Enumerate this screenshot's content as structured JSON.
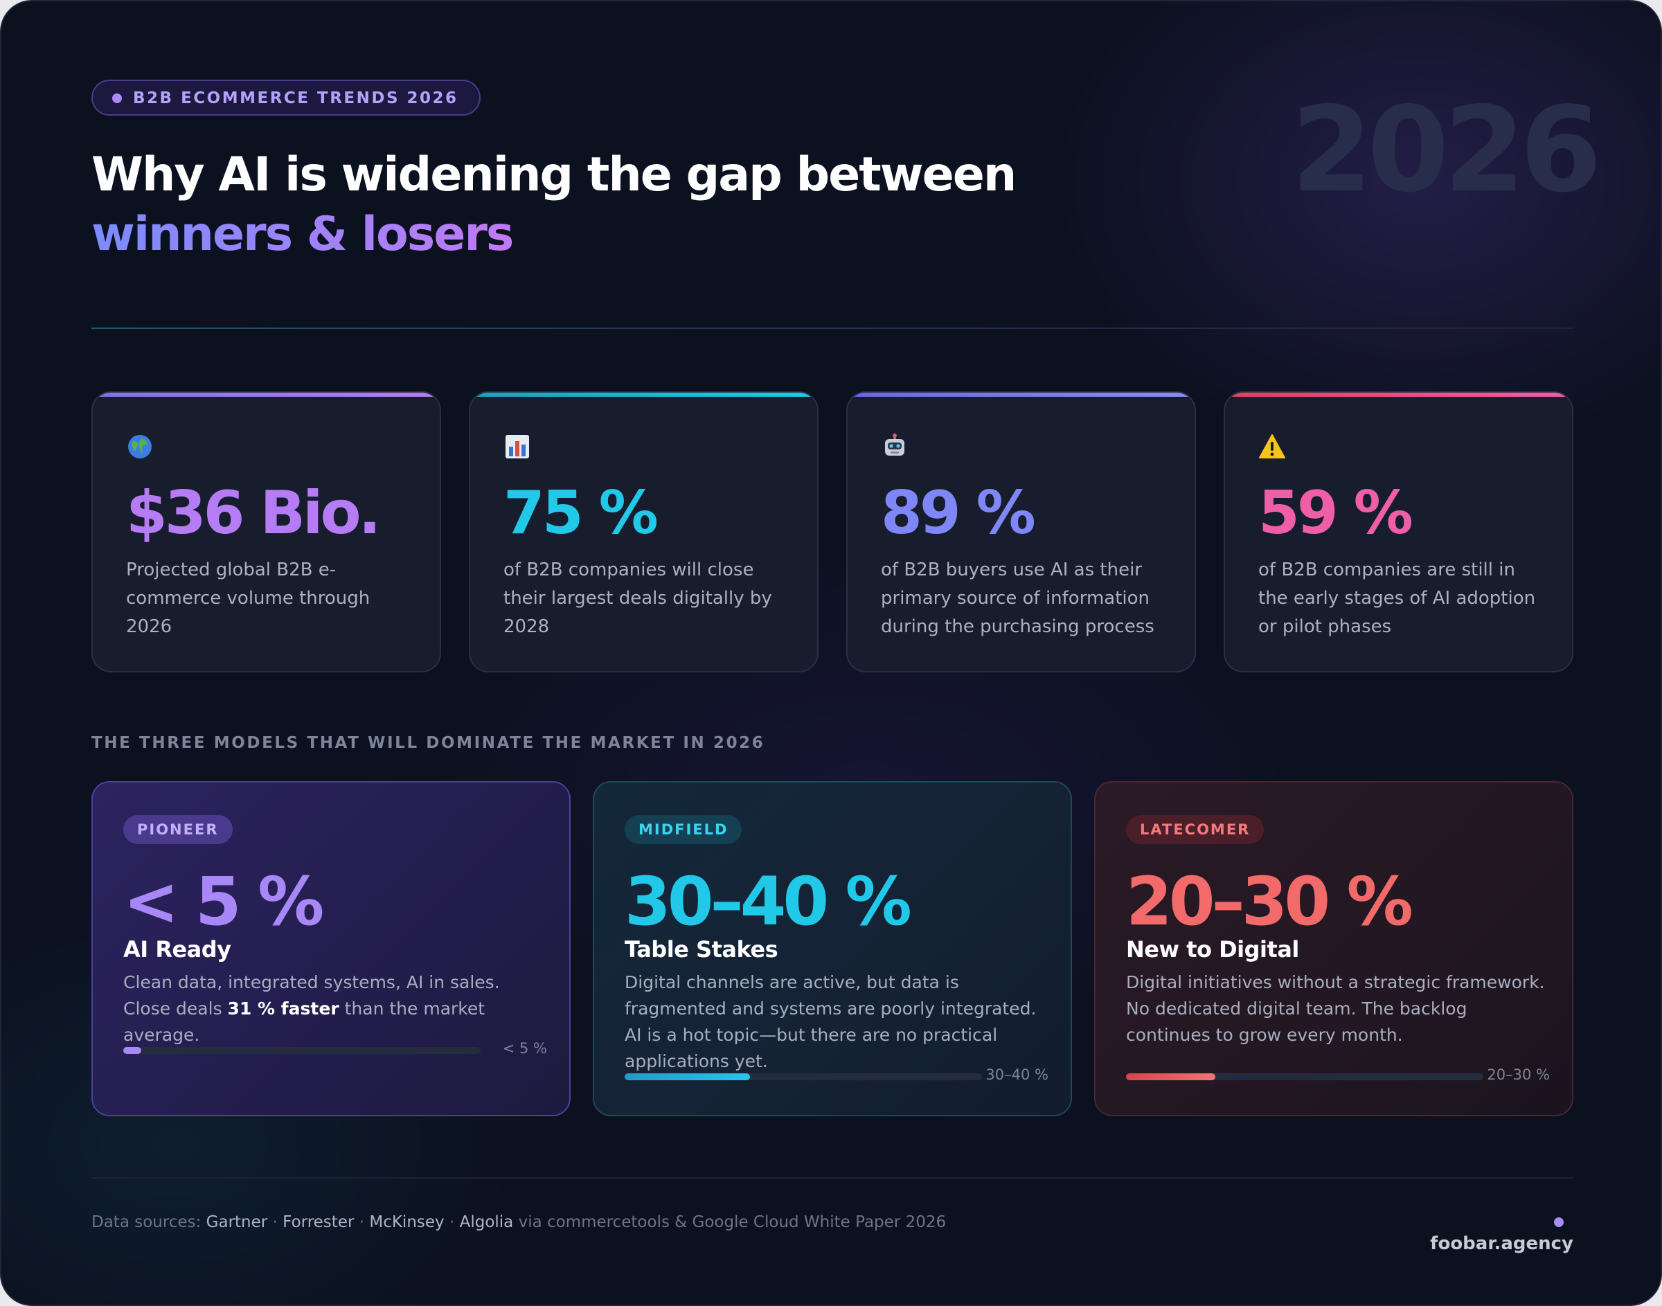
{
  "header": {
    "badge": "B2B ECOMMERCE TRENDS 2026",
    "title_line1": "Why AI is widening the gap between",
    "title_line2": "winners & losers",
    "year_watermark": "2026"
  },
  "stats": [
    {
      "icon": "globe-icon",
      "value": "$36 Bio.",
      "desc": "Projected global B2B e-commerce volume through 2026",
      "accent": "#b57cf5"
    },
    {
      "icon": "bar-chart-icon",
      "value": "75 %",
      "desc": "of B2B companies will close their largest deals digitally by 2028",
      "accent": "#22c8e8"
    },
    {
      "icon": "robot-icon",
      "value": "89 %",
      "desc": "of B2B buyers use AI as their primary source of information during the purchasing process",
      "accent": "#7f86f6"
    },
    {
      "icon": "warning-icon",
      "value": "59 %",
      "desc": "of B2B companies are still in the early stages of AI adoption or pilot phases",
      "accent": "#ee5fa8"
    }
  ],
  "section_label": "THE THREE MODELS THAT WILL DOMINATE THE MARKET IN 2026",
  "models": [
    {
      "tag": "PIONEER",
      "value": "< 5 %",
      "name": "AI Ready",
      "text_before": "Clean data, integrated systems, AI in sales. Close deals ",
      "text_bold": "31 % faster",
      "text_after": " than the market average.",
      "progress": 0.05,
      "progress_label": "< 5 %",
      "accent": "#a887f6"
    },
    {
      "tag": "MIDFIELD",
      "value": "30–40 %",
      "name": "Table Stakes",
      "text": "Digital channels are active, but data is fragmented and systems are poorly integrated. AI is a hot topic—but there are no practical applications yet.",
      "progress": 0.35,
      "progress_label": "30–40 %",
      "accent": "#22c8e8"
    },
    {
      "tag": "LATECOMER",
      "value": "20–30 %",
      "name": "New to Digital",
      "text": "Digital initiatives without a strategic framework. No dedicated digital team. The backlog continues to grow every month.",
      "progress": 0.25,
      "progress_label": "20–30 %",
      "accent": "#f26a6a"
    }
  ],
  "footer": {
    "sources_prefix": "Data sources:",
    "source1": "Gartner",
    "source2": "Forrester",
    "source3": "McKinsey",
    "source4": "Algolia",
    "sources_suffix": "via commercetools & Google Cloud White Paper 2026",
    "brand": "foobar.agency"
  }
}
